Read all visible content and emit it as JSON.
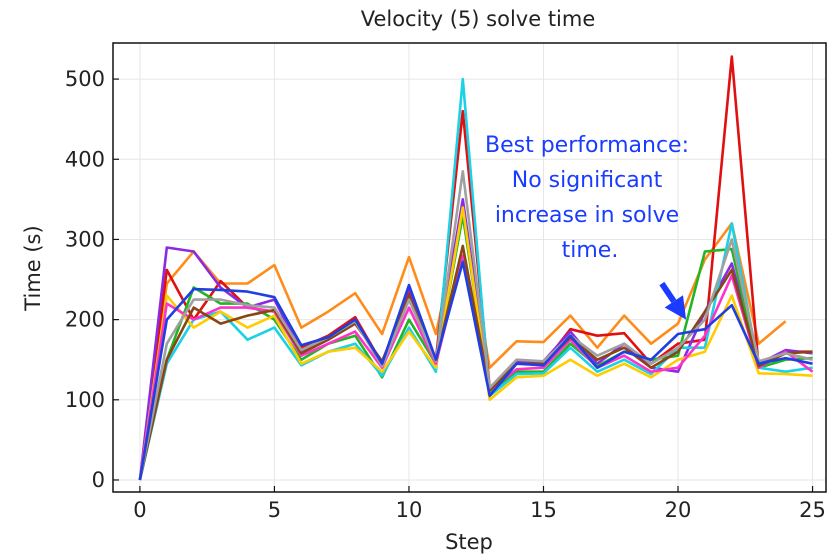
{
  "chart_data": {
    "type": "line",
    "title": "Velocity (5) solve time",
    "xlabel": "Step",
    "ylabel": "Time (s)",
    "xlim": [
      -1,
      25.5
    ],
    "ylim": [
      -15,
      545
    ],
    "xticks": [
      0,
      5,
      10,
      15,
      20,
      25
    ],
    "yticks": [
      0,
      100,
      200,
      300,
      400,
      500
    ],
    "grid": true,
    "legend": "none",
    "annotation": {
      "lines": [
        "Best performance:",
        "No significant",
        "increase in solve",
        "time."
      ],
      "color": "#1a3cff",
      "arrow_from": [
        19.4,
        245
      ],
      "arrow_to": [
        20.3,
        200
      ]
    },
    "series": [
      {
        "color": "#ff8c1a",
        "x": [
          0,
          1,
          2,
          3,
          4,
          5,
          6,
          7,
          8,
          9,
          10,
          11,
          12,
          13,
          14,
          15,
          16,
          17,
          18,
          19,
          20,
          21,
          22,
          23,
          24
        ],
        "y": [
          0,
          245,
          285,
          245,
          245,
          268,
          190,
          210,
          233,
          182,
          278,
          182,
          335,
          140,
          173,
          172,
          205,
          165,
          205,
          170,
          195,
          275,
          320,
          170,
          198
        ]
      },
      {
        "color": "#e01010",
        "x": [
          0,
          1,
          2,
          3,
          4,
          5,
          6,
          7,
          8,
          9,
          10,
          11,
          12,
          13,
          14,
          15,
          16,
          17,
          18,
          19,
          20,
          21,
          22,
          23,
          24,
          25
        ],
        "y": [
          0,
          262,
          200,
          248,
          215,
          210,
          165,
          180,
          203,
          145,
          235,
          150,
          460,
          115,
          145,
          145,
          188,
          180,
          183,
          145,
          170,
          175,
          528,
          140,
          160,
          160
        ]
      },
      {
        "color": "#8a2be2",
        "x": [
          0,
          1,
          2,
          3,
          4,
          5,
          6,
          7,
          8,
          9,
          10,
          11,
          12,
          13,
          14,
          15,
          16,
          17,
          18,
          19,
          20,
          21,
          22,
          23,
          24,
          25
        ],
        "y": [
          0,
          290,
          285,
          240,
          215,
          225,
          160,
          175,
          198,
          145,
          240,
          150,
          350,
          110,
          148,
          148,
          185,
          145,
          170,
          140,
          135,
          210,
          270,
          145,
          162,
          158
        ]
      },
      {
        "color": "#22b522",
        "x": [
          0,
          1,
          2,
          3,
          4,
          5,
          6,
          7,
          8,
          9,
          10,
          11,
          12,
          13,
          14,
          15,
          16,
          17,
          18,
          19,
          20,
          21,
          22,
          23,
          24,
          25
        ],
        "y": [
          0,
          150,
          240,
          220,
          220,
          200,
          150,
          170,
          180,
          128,
          200,
          145,
          330,
          108,
          135,
          135,
          170,
          142,
          160,
          150,
          155,
          285,
          288,
          140,
          150,
          152
        ]
      },
      {
        "color": "#1ad1e5",
        "x": [
          0,
          1,
          2,
          3,
          4,
          5,
          6,
          7,
          8,
          9,
          10,
          11,
          12,
          13,
          14,
          15,
          16,
          17,
          18,
          19,
          20,
          21,
          22,
          23,
          24,
          25
        ],
        "y": [
          0,
          145,
          200,
          210,
          175,
          190,
          143,
          160,
          170,
          130,
          190,
          135,
          500,
          105,
          132,
          133,
          165,
          135,
          150,
          132,
          165,
          165,
          320,
          140,
          135,
          140
        ]
      },
      {
        "color": "#ffcc00",
        "x": [
          0,
          1,
          2,
          3,
          4,
          5,
          6,
          7,
          8,
          9,
          10,
          11,
          12,
          13,
          14,
          15,
          16,
          17,
          18,
          19,
          20,
          21,
          22,
          23,
          24,
          25
        ],
        "y": [
          0,
          230,
          190,
          210,
          190,
          205,
          145,
          160,
          165,
          135,
          185,
          140,
          340,
          100,
          128,
          130,
          150,
          130,
          145,
          128,
          150,
          160,
          230,
          133,
          132,
          130
        ]
      },
      {
        "color": "#ff33cc",
        "x": [
          0,
          1,
          2,
          3,
          4,
          5,
          6,
          7,
          8,
          9,
          10,
          11,
          12,
          13,
          14,
          15,
          16,
          17,
          18,
          19,
          20,
          21,
          22,
          23,
          24,
          25
        ],
        "y": [
          0,
          220,
          200,
          215,
          215,
          210,
          155,
          170,
          185,
          140,
          215,
          145,
          280,
          112,
          138,
          140,
          175,
          140,
          155,
          135,
          140,
          180,
          255,
          140,
          160,
          135
        ]
      },
      {
        "color": "#8b4513",
        "x": [
          0,
          1,
          2,
          3,
          4,
          5,
          6,
          7,
          8,
          9,
          10,
          11,
          12,
          13,
          14,
          15,
          16,
          17,
          18,
          19,
          20,
          21,
          22,
          23,
          24,
          25
        ],
        "y": [
          0,
          150,
          215,
          195,
          205,
          212,
          158,
          175,
          195,
          148,
          230,
          148,
          292,
          112,
          145,
          145,
          178,
          150,
          165,
          140,
          160,
          210,
          262,
          142,
          158,
          160
        ]
      },
      {
        "color": "#a0a0a0",
        "x": [
          0,
          1,
          2,
          3,
          4,
          5,
          6,
          7,
          8,
          9,
          10,
          11,
          12,
          13,
          14,
          15,
          16,
          17,
          18,
          19,
          20,
          21,
          22,
          23,
          24,
          25
        ],
        "y": [
          0,
          170,
          225,
          225,
          218,
          215,
          162,
          178,
          198,
          142,
          225,
          148,
          385,
          115,
          150,
          148,
          180,
          155,
          170,
          145,
          165,
          200,
          300,
          148,
          158,
          150
        ]
      },
      {
        "color": "#1f3fe0",
        "x": [
          0,
          1,
          2,
          3,
          4,
          5,
          6,
          7,
          8,
          9,
          10,
          11,
          12,
          13,
          14,
          15,
          16,
          17,
          18,
          19,
          20,
          21,
          22,
          23,
          24,
          25
        ],
        "y": [
          0,
          200,
          238,
          237,
          235,
          228,
          168,
          178,
          200,
          145,
          243,
          150,
          272,
          105,
          145,
          143,
          180,
          140,
          160,
          150,
          182,
          188,
          218,
          145,
          152,
          145
        ]
      }
    ]
  }
}
